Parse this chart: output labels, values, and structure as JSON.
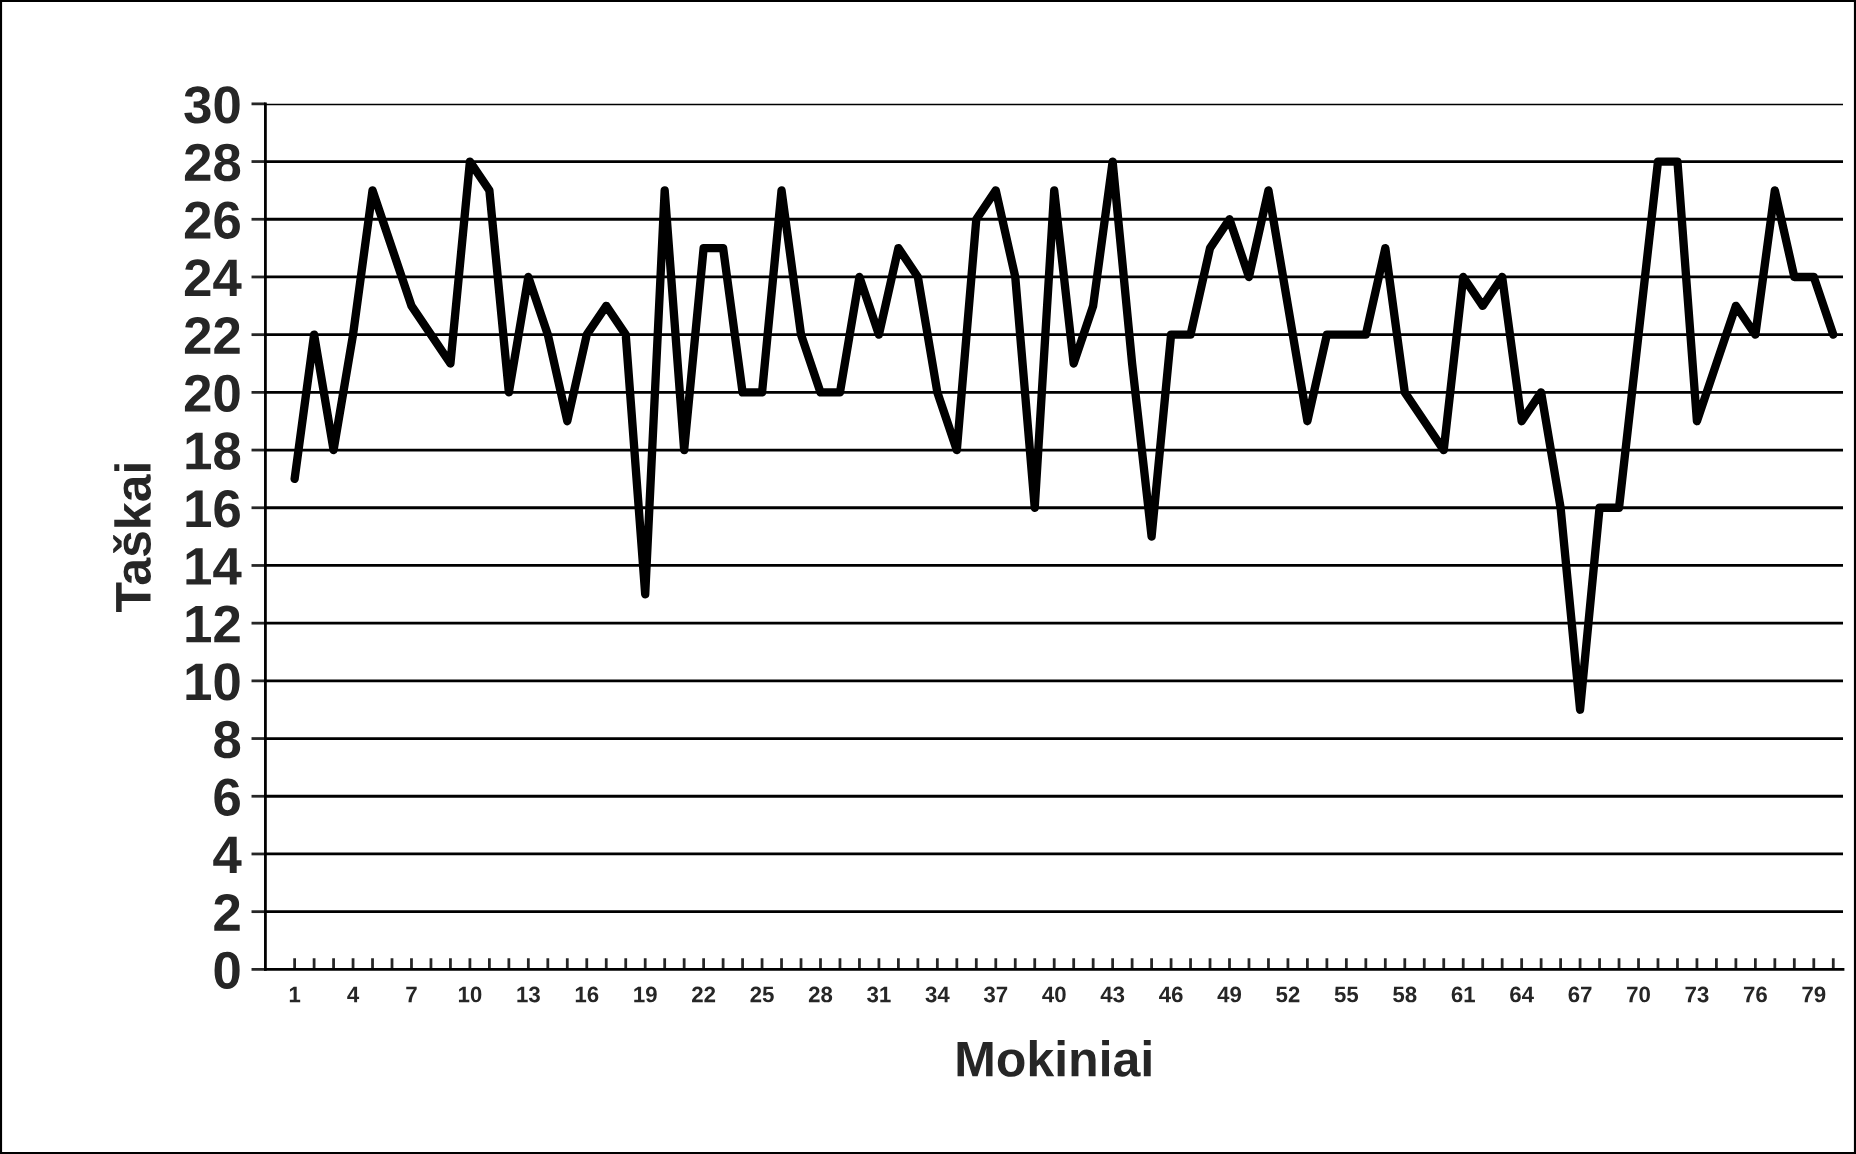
{
  "chart_data": {
    "type": "line",
    "xlabel": "Mokiniai",
    "ylabel": "Taškai",
    "categories": [
      "1",
      null,
      null,
      "4",
      null,
      null,
      "7",
      null,
      null,
      "10",
      null,
      null,
      "13",
      null,
      null,
      "16",
      null,
      null,
      "19",
      null,
      null,
      "22",
      null,
      null,
      "25",
      null,
      null,
      "28",
      null,
      null,
      "31",
      null,
      null,
      "34",
      null,
      null,
      "37",
      null,
      null,
      "40",
      null,
      null,
      "43",
      null,
      null,
      "46",
      null,
      null,
      "49",
      null,
      null,
      "52",
      null,
      null,
      "55",
      null,
      null,
      "58",
      null,
      null,
      "61",
      null,
      null,
      "64",
      null,
      null,
      "67",
      null,
      null,
      "70",
      null,
      null,
      "73",
      null,
      null,
      "76",
      null,
      null,
      "79",
      null
    ],
    "series": [
      {
        "color": "#000000",
        "values": [
          17,
          22,
          18,
          22,
          27,
          25,
          23,
          22,
          21,
          28,
          27,
          20,
          24,
          22,
          19,
          22,
          23,
          22,
          13,
          27,
          18,
          25,
          25,
          20,
          20,
          27,
          22,
          20,
          20,
          24,
          22,
          25,
          24,
          20,
          18,
          26,
          27,
          24,
          16,
          27,
          21,
          23,
          28,
          21,
          15,
          22,
          22,
          25,
          26,
          24,
          27,
          23,
          19,
          22,
          22,
          22,
          25,
          20,
          19,
          18,
          24,
          23,
          24,
          19,
          20,
          16,
          9,
          16,
          16,
          22,
          28,
          28,
          19,
          21,
          23,
          22,
          27,
          24,
          24,
          22
        ]
      }
    ],
    "ylim": [
      0,
      30
    ],
    "yticks": [
      0,
      2,
      4,
      6,
      8,
      10,
      12,
      14,
      16,
      18,
      20,
      22,
      24,
      26,
      28,
      30
    ],
    "grid": "y",
    "marker": "none",
    "line_style": "solid"
  }
}
